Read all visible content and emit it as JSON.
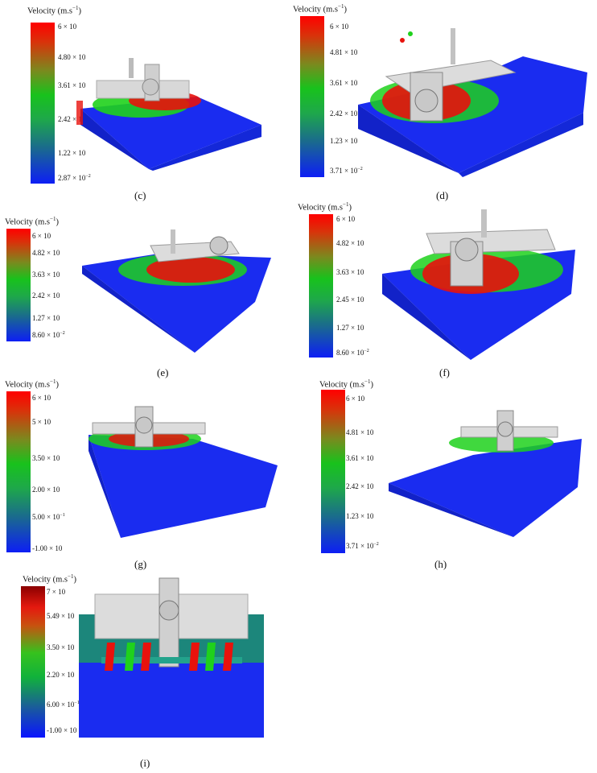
{
  "legend_title": "Velocity (m.s",
  "legend_title_exp": "−1",
  "legend_title_end": ")",
  "panels": {
    "c": {
      "label": "(c)",
      "ticks": [
        {
          "m": "6 × 10",
          "e": ""
        },
        {
          "m": "4.80 × 10",
          "e": ""
        },
        {
          "m": "3.61 × 10",
          "e": ""
        },
        {
          "m": "2.42 × 10",
          "e": ""
        },
        {
          "m": "1.22 × 10",
          "e": ""
        },
        {
          "m": "2.87 × 10",
          "e": "−2"
        }
      ]
    },
    "d": {
      "label": "(d)",
      "ticks": [
        {
          "m": "6 × 10",
          "e": ""
        },
        {
          "m": "4.81 × 10",
          "e": ""
        },
        {
          "m": "3.61 × 10",
          "e": ""
        },
        {
          "m": "2.42 × 10",
          "e": ""
        },
        {
          "m": "1.23 × 10",
          "e": ""
        },
        {
          "m": "3.71 × 10",
          "e": "−2"
        }
      ]
    },
    "e": {
      "label": "(e)",
      "ticks": [
        {
          "m": "6 × 10",
          "e": ""
        },
        {
          "m": "4.82 × 10",
          "e": ""
        },
        {
          "m": "3.63 × 10",
          "e": ""
        },
        {
          "m": "2.42 × 10",
          "e": ""
        },
        {
          "m": "1.27 × 10",
          "e": ""
        },
        {
          "m": "8.60 × 10",
          "e": "−2"
        }
      ]
    },
    "f": {
      "label": "(f)",
      "ticks": [
        {
          "m": "6 × 10",
          "e": ""
        },
        {
          "m": "4.82 × 10",
          "e": ""
        },
        {
          "m": "3.63 × 10",
          "e": ""
        },
        {
          "m": "2.45 × 10",
          "e": ""
        },
        {
          "m": "1.27 × 10",
          "e": ""
        },
        {
          "m": "8.60 × 10",
          "e": "−2"
        }
      ]
    },
    "g": {
      "label": "(g)",
      "ticks": [
        {
          "m": "6 × 10",
          "e": ""
        },
        {
          "m": "5 × 10",
          "e": ""
        },
        {
          "m": "3.50 × 10",
          "e": ""
        },
        {
          "m": "2.00 × 10",
          "e": ""
        },
        {
          "m": "5.00 × 10",
          "e": "−1"
        },
        {
          "m": "-1.00 × 10",
          "e": ""
        }
      ]
    },
    "h": {
      "label": "(h)",
      "ticks": [
        {
          "m": "6 × 10",
          "e": ""
        },
        {
          "m": "4.81 × 10",
          "e": ""
        },
        {
          "m": "3.61 × 10",
          "e": ""
        },
        {
          "m": "2.42 × 10",
          "e": ""
        },
        {
          "m": "1.23 × 10",
          "e": ""
        },
        {
          "m": "3.71 × 10",
          "e": "−2"
        }
      ]
    },
    "i": {
      "label": "(i)",
      "ticks": [
        {
          "m": "7 × 10",
          "e": ""
        },
        {
          "m": "5.49 × 10",
          "e": ""
        },
        {
          "m": "3.50 × 10",
          "e": ""
        },
        {
          "m": "2.20 × 10",
          "e": ""
        },
        {
          "m": "6.00 × 10",
          "e": "−1"
        },
        {
          "m": "-1.00 × 10",
          "e": ""
        }
      ]
    }
  },
  "colors": {
    "particle_blue": "#1a2cf0",
    "particle_green": "#1fd11c",
    "particle_red": "#e8120c",
    "machine_gray": "#d8d8d8"
  }
}
